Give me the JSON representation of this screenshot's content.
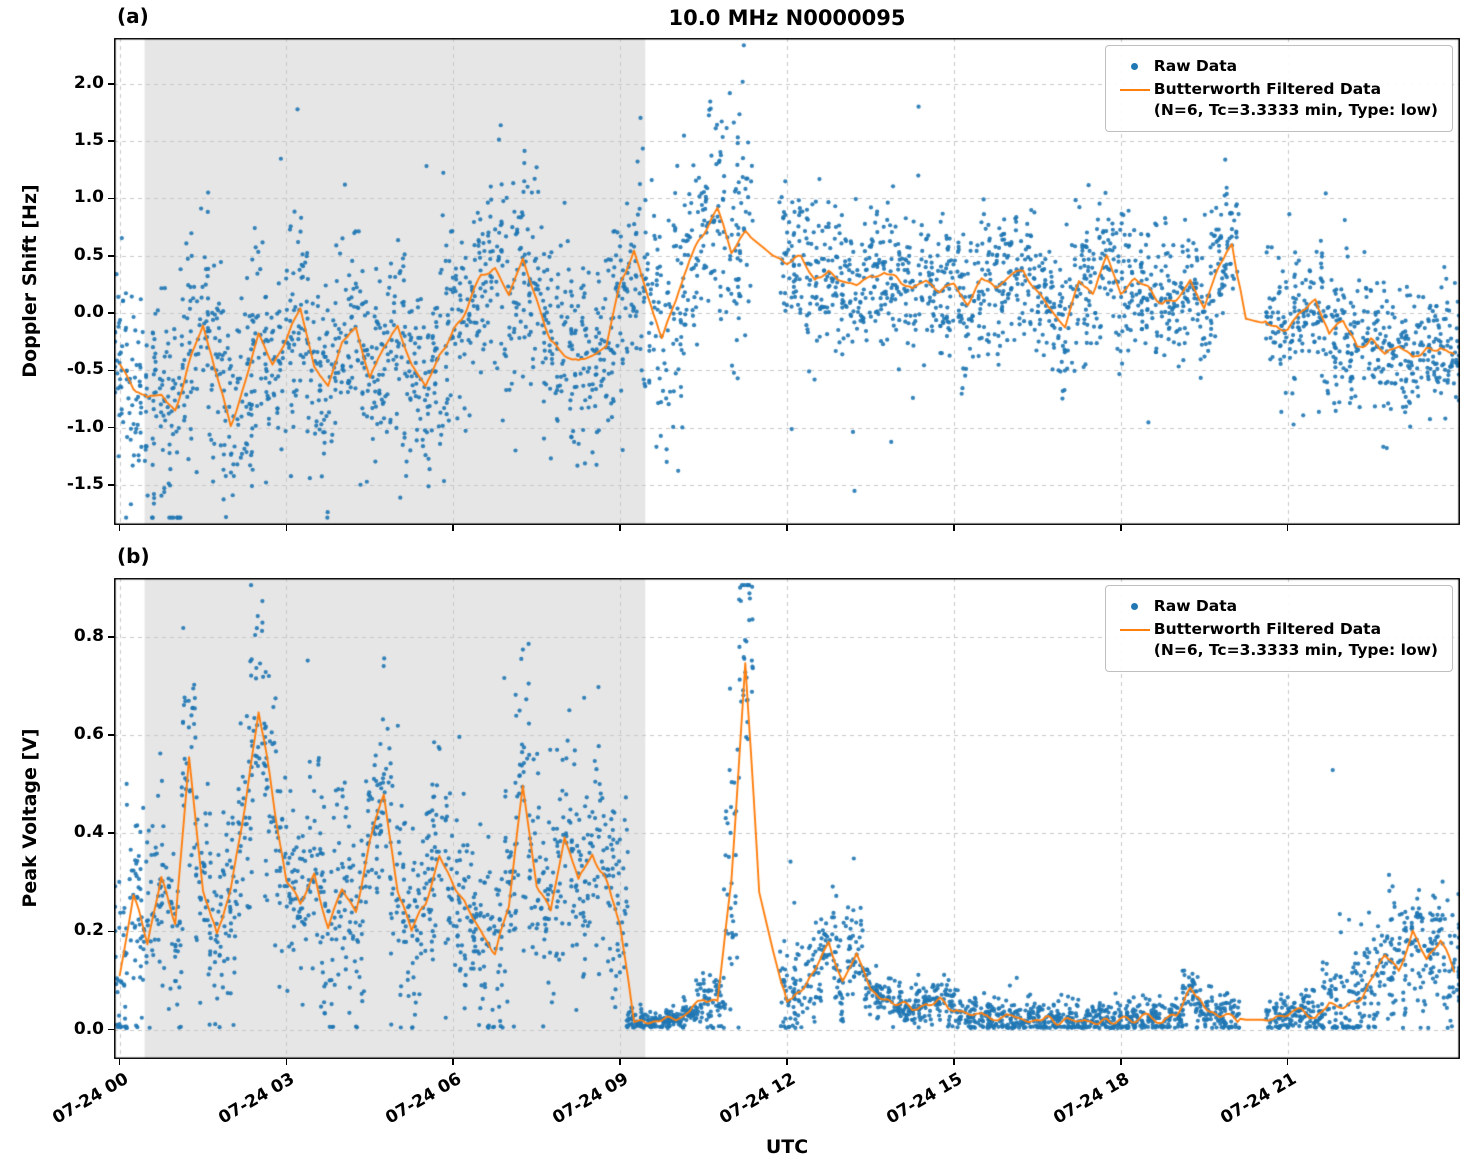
{
  "figure": {
    "title": "10.0 MHz N0000095",
    "xlabel": "UTC",
    "background": "#ffffff"
  },
  "colors": {
    "raw": "#1f77b4",
    "filtered": "#ff7f0e",
    "shade": "#e6e6e6",
    "grid": "#c9c9c9",
    "frame": "#000000"
  },
  "legend": {
    "raw_label": "Raw Data",
    "filtered_label": "Butterworth Filtered Data",
    "filtered_sublabel": "(N=6, Tc=3.3333 min, Type: low)"
  },
  "xaxis": {
    "range": [
      0,
      24
    ],
    "ticks": [
      0,
      3,
      6,
      9,
      12,
      15,
      18,
      21
    ],
    "tick_labels": [
      "07-24 00",
      "07-24 03",
      "07-24 06",
      "07-24 09",
      "07-24 12",
      "07-24 15",
      "07-24 18",
      "07-24 21"
    ],
    "grid": true
  },
  "chart_data": [
    {
      "type": "scatter",
      "panel": "(a)",
      "title": "10.0 MHz N0000095",
      "ylabel": "Doppler Shift [Hz]",
      "ylim": [
        -1.85,
        2.4
      ],
      "yticks": [
        -1.5,
        -1.0,
        -0.5,
        0.0,
        0.5,
        1.0,
        1.5,
        2.0
      ],
      "ytick_labels": [
        "-1.5",
        "-1.0",
        "-0.5",
        "0.0",
        "0.5",
        "1.0",
        "1.5",
        "2.0"
      ],
      "grid": true,
      "legend_position": "upper right",
      "shaded_span": [
        0.45,
        9.45
      ],
      "series": [
        {
          "name": "Raw Data",
          "style": "scatter",
          "color": "#1f77b4"
        },
        {
          "name": "Butterworth Filtered Data (N=6, Tc=3.3333 min, Type: low)",
          "style": "line",
          "color": "#ff7f0e"
        }
      ],
      "x_start": 0,
      "x_step": 0.25,
      "filtered": [
        -0.45,
        -0.65,
        -0.75,
        -0.7,
        -0.85,
        -0.45,
        -0.1,
        -0.55,
        -0.95,
        -0.6,
        -0.2,
        -0.45,
        -0.25,
        0.05,
        -0.45,
        -0.65,
        -0.25,
        -0.15,
        -0.55,
        -0.3,
        -0.1,
        -0.45,
        -0.65,
        -0.35,
        -0.15,
        0.05,
        0.3,
        0.4,
        0.15,
        0.45,
        0.1,
        -0.25,
        -0.35,
        -0.4,
        -0.35,
        -0.3,
        0.25,
        0.55,
        0.15,
        -0.25,
        0.1,
        0.45,
        0.7,
        0.9,
        0.55,
        0.7,
        0.6,
        0.5,
        0.45,
        0.5,
        0.3,
        0.35,
        0.28,
        0.22,
        0.32,
        0.35,
        0.28,
        0.22,
        0.3,
        0.18,
        0.25,
        0.08,
        0.28,
        0.22,
        0.3,
        0.35,
        0.18,
        0.05,
        -0.12,
        0.28,
        0.18,
        0.5,
        0.18,
        0.3,
        0.22,
        0.08,
        0.12,
        0.3,
        0.05,
        0.4,
        0.6,
        -0.05,
        -0.08,
        -0.1,
        -0.15,
        0.0,
        0.1,
        -0.2,
        -0.08,
        -0.3,
        -0.22,
        -0.38,
        -0.28,
        -0.42,
        -0.32,
        -0.3,
        -0.38
      ],
      "spread_segments": [
        [
          0,
          9.45,
          0.45
        ],
        [
          9.45,
          11.3,
          0.55
        ],
        [
          11.95,
          20.1,
          0.3
        ],
        [
          20.6,
          24.05,
          0.28
        ]
      ],
      "gaps": [
        [
          11.3,
          11.95
        ],
        [
          20.1,
          20.6
        ]
      ],
      "pts_per_sample": 34,
      "outlier_rate": 0.03,
      "outlier_scale": 2.2,
      "line_wiggle": 0.06
    },
    {
      "type": "scatter",
      "panel": "(b)",
      "ylabel": "Peak Voltage [V]",
      "xlabel": "UTC",
      "ylim": [
        -0.06,
        0.92
      ],
      "yticks": [
        0.0,
        0.2,
        0.4,
        0.6,
        0.8
      ],
      "ytick_labels": [
        "0.0",
        "0.2",
        "0.4",
        "0.6",
        "0.8"
      ],
      "grid": true,
      "legend_position": "upper right",
      "shaded_span": [
        0.45,
        9.45
      ],
      "series": [
        {
          "name": "Raw Data",
          "style": "scatter",
          "color": "#1f77b4"
        },
        {
          "name": "Butterworth Filtered Data (N=6, Tc=3.3333 min, Type: low)",
          "style": "line",
          "color": "#ff7f0e"
        }
      ],
      "x_start": 0,
      "x_step": 0.25,
      "filtered": [
        0.12,
        0.28,
        0.18,
        0.32,
        0.22,
        0.55,
        0.28,
        0.2,
        0.28,
        0.45,
        0.65,
        0.48,
        0.3,
        0.26,
        0.32,
        0.2,
        0.28,
        0.24,
        0.38,
        0.48,
        0.28,
        0.2,
        0.26,
        0.36,
        0.3,
        0.24,
        0.2,
        0.16,
        0.26,
        0.5,
        0.3,
        0.24,
        0.4,
        0.3,
        0.36,
        0.3,
        0.22,
        0.02,
        0.015,
        0.015,
        0.02,
        0.035,
        0.06,
        0.05,
        0.3,
        0.75,
        0.28,
        0.16,
        0.05,
        0.08,
        0.12,
        0.18,
        0.1,
        0.16,
        0.08,
        0.06,
        0.05,
        0.04,
        0.05,
        0.06,
        0.04,
        0.03,
        0.03,
        0.025,
        0.02,
        0.02,
        0.025,
        0.02,
        0.02,
        0.015,
        0.02,
        0.02,
        0.02,
        0.02,
        0.025,
        0.02,
        0.03,
        0.08,
        0.04,
        0.03,
        0.025,
        0.02,
        0.02,
        0.02,
        0.03,
        0.04,
        0.03,
        0.05,
        0.04,
        0.06,
        0.1,
        0.15,
        0.12,
        0.2,
        0.14,
        0.18,
        0.12
      ],
      "spread_segments": [
        [
          0,
          9.15,
          0.11
        ],
        [
          9.15,
          10.4,
          0.012
        ],
        [
          10.4,
          10.9,
          0.03
        ],
        [
          10.9,
          11.45,
          0.13
        ],
        [
          11.95,
          13.4,
          0.055
        ],
        [
          13.4,
          19.0,
          0.02
        ],
        [
          19.0,
          20.1,
          0.025
        ],
        [
          20.6,
          21.5,
          0.02
        ],
        [
          21.5,
          24.05,
          0.07
        ]
      ],
      "gaps": [
        [
          11.45,
          11.95
        ],
        [
          20.1,
          20.6
        ]
      ],
      "pts_per_sample": 34,
      "outlier_rate": 0.03,
      "outlier_scale": 2.2,
      "line_wiggle": 0.018,
      "value_floor": 0.003
    }
  ]
}
